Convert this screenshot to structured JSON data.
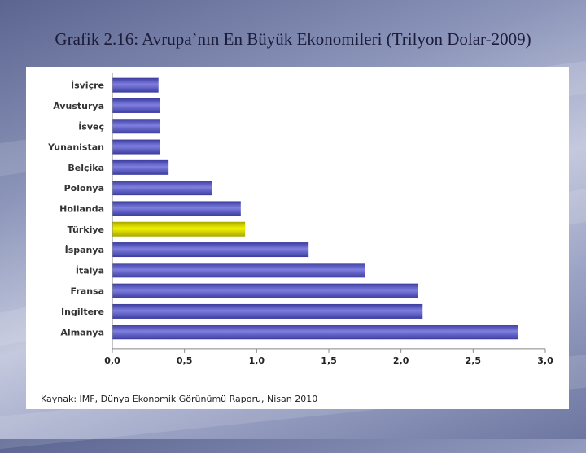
{
  "slide": {
    "title": "Grafik 2.16: Avrupa’nın En Büyük Ekonomileri (Trilyon Dolar-2009)"
  },
  "source_note": "Kaynak: IMF, Dünya Ekonomik Görünümü Raporu, Nisan 2010",
  "colors": {
    "bar": "#7f7fe0",
    "bar_dark": "#3c3ca0",
    "highlight": "#f2f200",
    "highlight_dark": "#a8a800"
  },
  "chart_data": {
    "type": "bar",
    "orientation": "horizontal",
    "categories": [
      "İsviçre",
      "Avusturya",
      "İsveç",
      "Yunanistan",
      "Belçika",
      "Polonya",
      "Hollanda",
      "Türkiye",
      "İspanya",
      "İtalya",
      "Fransa",
      "İngiltere",
      "Almanya"
    ],
    "values": [
      0.32,
      0.33,
      0.33,
      0.33,
      0.39,
      0.69,
      0.89,
      0.92,
      1.36,
      1.75,
      2.12,
      2.15,
      2.81
    ],
    "highlight_category": "Türkiye",
    "xlim": [
      0,
      3
    ],
    "xticks": [
      "0,0",
      "0,5",
      "1,0",
      "1,5",
      "2,0",
      "2,5",
      "3,0"
    ],
    "grid": false,
    "title": "Grafik 2.16: Avrupa’nın En Büyük Ekonomileri (Trilyon Dolar-2009)",
    "xlabel": "",
    "ylabel": ""
  }
}
